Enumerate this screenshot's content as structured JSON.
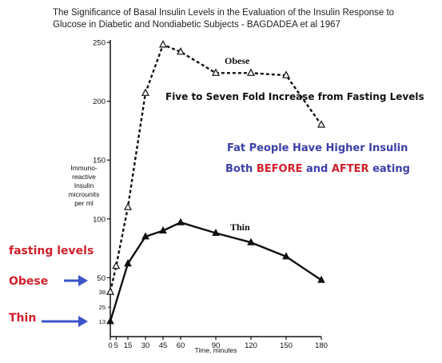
{
  "header": {
    "title_line1": "The Significance of Basal Insulin Levels in the Evaluation of the Insulin Response to",
    "title_line2": "Glucose in Diabetic and Nondiabetic Subjects -  BAGDADEA et al 1967"
  },
  "annotations": {
    "fold_increase": "Five to Seven Fold Increase from Fasting Levels",
    "higher_line1": "Fat People Have Higher Insulin",
    "higher_line2_a": "Both ",
    "higher_line2_b": "BEFORE",
    "higher_line2_c": " and ",
    "higher_line2_d": "AFTER",
    "higher_line2_e": " eating",
    "fasting_levels": "fasting levels",
    "obese_label": "Obese",
    "thin_label": "Thin"
  },
  "colors": {
    "red": "#d01f2a",
    "blue": "#3b3fa6",
    "arrow_blue": "#3d54c8",
    "line": "#111111"
  },
  "chart_data": {
    "type": "line",
    "xlabel": "Time, minutes",
    "ylabel_lines": [
      "Immuno-",
      "reactive",
      "Insulin",
      "microunits",
      "per ml"
    ],
    "x": [
      0,
      5,
      15,
      30,
      45,
      60,
      90,
      120,
      150,
      180
    ],
    "x_ticks": [
      0,
      5,
      15,
      30,
      45,
      60,
      90,
      120,
      150,
      180
    ],
    "y_ticks": [
      50,
      100,
      150,
      200,
      250
    ],
    "y_ticks_extra": [
      13,
      25,
      38
    ],
    "xlim": [
      0,
      180
    ],
    "ylim": [
      0,
      250
    ],
    "series": [
      {
        "name": "Obese",
        "style": "dashed",
        "marker": "open-triangle",
        "x": [
          0,
          5,
          15,
          30,
          45,
          60,
          90,
          120,
          150,
          180
        ],
        "values": [
          38,
          60,
          110,
          207,
          248,
          242,
          224,
          224,
          222,
          180
        ]
      },
      {
        "name": "Thin",
        "style": "solid",
        "marker": "filled-triangle",
        "x": [
          0,
          15,
          30,
          45,
          60,
          90,
          120,
          150,
          180
        ],
        "values": [
          13,
          62,
          85,
          90,
          97,
          88,
          80,
          68,
          48
        ]
      }
    ],
    "legend": "inline labels near lines"
  }
}
